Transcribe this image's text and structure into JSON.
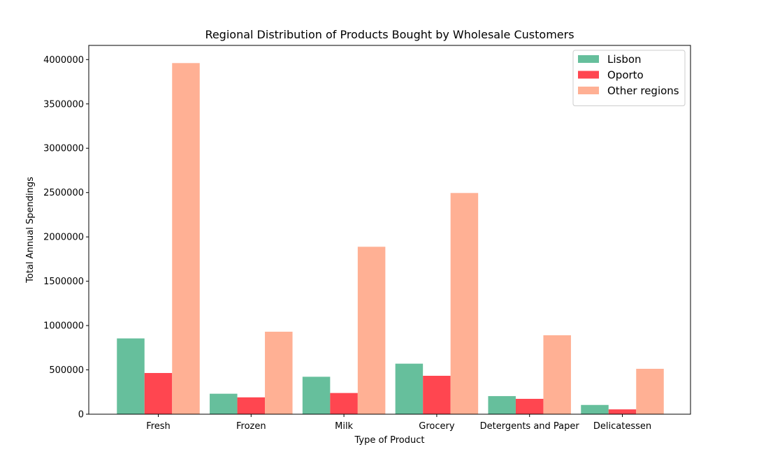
{
  "chart_data": {
    "type": "bar",
    "title": "Regional Distribution of Products Bought by Wholesale Customers",
    "xlabel": "Type of Product",
    "ylabel": "Total Annual Spendings",
    "categories": [
      "Fresh",
      "Frozen",
      "Milk",
      "Grocery",
      "Detergents and Paper",
      "Delicatessen"
    ],
    "series": [
      {
        "name": "Lisbon",
        "color": "#66bf9c",
        "values": [
          854833,
          231026,
          422454,
          570037,
          204136,
          104327
        ]
      },
      {
        "name": "Oporto",
        "color": "#ff4650",
        "values": [
          464721,
          190132,
          239144,
          433274,
          173311,
          54506
        ]
      },
      {
        "name": "Other regions",
        "color": "#ffb094",
        "values": [
          3960577,
          930492,
          1888759,
          2495251,
          890410,
          512110
        ]
      }
    ],
    "ylim": [
      0,
      4160000
    ],
    "yticks": [
      0,
      500000,
      1000000,
      1500000,
      2000000,
      2500000,
      3000000,
      3500000,
      4000000
    ],
    "ytick_labels": [
      "0",
      "500000",
      "1000000",
      "1500000",
      "2000000",
      "2500000",
      "3000000",
      "3500000",
      "4000000"
    ],
    "legend_position": "top-right",
    "grid": false
  }
}
